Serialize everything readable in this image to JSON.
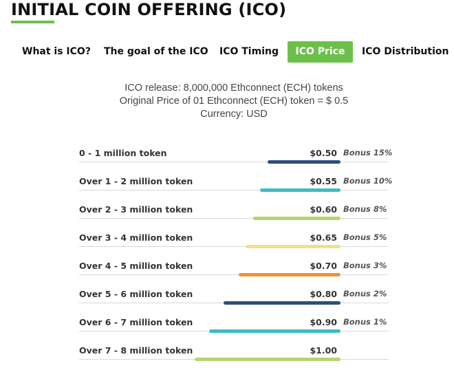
{
  "page": {
    "title": "INITIAL COIN OFFERING (ICO)",
    "accent_color": "#6cc04a"
  },
  "tabs": [
    {
      "label": "What is ICO?",
      "active": false
    },
    {
      "label": "The goal of the ICO",
      "active": false
    },
    {
      "label": "ICO Timing",
      "active": false
    },
    {
      "label": "ICO Price",
      "active": true
    },
    {
      "label": "ICO Distribution",
      "active": false
    }
  ],
  "info": {
    "release": "ICO release: 8,000,000 Ethconnect (ECH) tokens",
    "original_price": "Original Price of 01 Ethconnect (ECH) token = $ 0.5",
    "currency": "Currency: USD"
  },
  "tiers": [
    {
      "label": "0 - 1 million token",
      "price": "$0.50",
      "bonus": "Bonus 15%",
      "bar_fraction": 0.5,
      "bar_color": "#2c4f7c"
    },
    {
      "label": "Over 1 - 2 million token",
      "price": "$0.55",
      "bonus": "Bonus 10%",
      "bar_fraction": 0.55,
      "bar_color": "#3fbcc0"
    },
    {
      "label": "Over 2 - 3 million token",
      "price": "$0.60",
      "bonus": "Bonus 8%",
      "bar_fraction": 0.6,
      "bar_color": "#b4d56e"
    },
    {
      "label": "Over 3 - 4 million token",
      "price": "$0.65",
      "bonus": "Bonus 5%",
      "bar_fraction": 0.65,
      "bar_color": "#efe08b"
    },
    {
      "label": "Over 4 - 5 million token",
      "price": "$0.70",
      "bonus": "Bonus 3%",
      "bar_fraction": 0.7,
      "bar_color": "#ef9136"
    },
    {
      "label": "Over 5 - 6 million token",
      "price": "$0.80",
      "bonus": "Bonus 2%",
      "bar_fraction": 0.8,
      "bar_color": "#2c4f7c"
    },
    {
      "label": "Over 6 - 7 million token",
      "price": "$0.90",
      "bonus": "Bonus 1%",
      "bar_fraction": 0.9,
      "bar_color": "#3fbcc0"
    },
    {
      "label": "Over 7 - 8 million token",
      "price": "$1.00",
      "bonus": "",
      "bar_fraction": 1.0,
      "bar_color": "#b4d56e"
    }
  ]
}
